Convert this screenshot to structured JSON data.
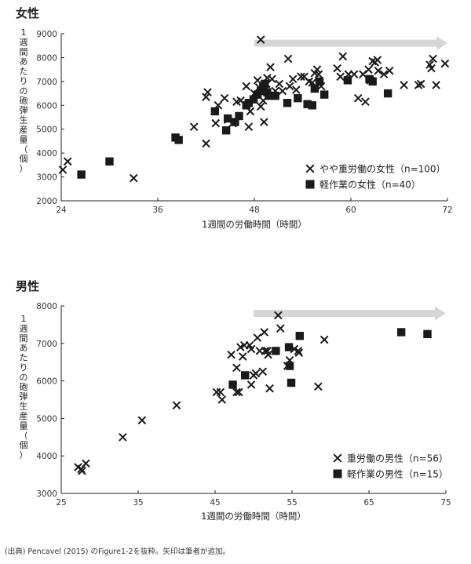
{
  "source_note": "(出典) Pencavel (2015) のFigure1-2を抜粋。矢印は筆者が追加。",
  "chart_data": [
    {
      "type": "scatter",
      "title": "女性",
      "xlabel": "1週間の労働時間（時間）",
      "ylabel": "1週間あたりの砲弾生産量（個）",
      "xlim": [
        24,
        72
      ],
      "ylim": [
        2000,
        9000
      ],
      "xticks": [
        24,
        36,
        48,
        60,
        72
      ],
      "yticks": [
        2000,
        3000,
        4000,
        5000,
        6000,
        7000,
        8000,
        9000
      ],
      "arrow": {
        "from": 48,
        "to": 72,
        "y": 8600
      },
      "series": [
        {
          "name": "やや重労働の女性（n=100）",
          "marker": "x",
          "points": [
            [
              24.2,
              3300
            ],
            [
              24.8,
              3650
            ],
            [
              33,
              2950
            ],
            [
              40.5,
              5100
            ],
            [
              42,
              6350
            ],
            [
              42.2,
              6550
            ],
            [
              42,
              4400
            ],
            [
              43.2,
              5250
            ],
            [
              43.5,
              6000
            ],
            [
              44.3,
              6300
            ],
            [
              44.7,
              5400
            ],
            [
              45.3,
              5250
            ],
            [
              45.8,
              6150
            ],
            [
              46.3,
              6200
            ],
            [
              47,
              6800
            ],
            [
              47.3,
              5100
            ],
            [
              47.5,
              5750
            ],
            [
              48,
              6500
            ],
            [
              48.4,
              7050
            ],
            [
              48.6,
              6750
            ],
            [
              48.8,
              5950
            ],
            [
              48.8,
              8750
            ],
            [
              49.1,
              6200
            ],
            [
              49.2,
              5300
            ],
            [
              49.5,
              6900
            ],
            [
              49.6,
              7150
            ],
            [
              50,
              7600
            ],
            [
              50.2,
              7100
            ],
            [
              50.6,
              6600
            ],
            [
              51.1,
              6900
            ],
            [
              51.5,
              6600
            ],
            [
              52.2,
              7950
            ],
            [
              52.4,
              6800
            ],
            [
              52.8,
              7100
            ],
            [
              53.2,
              6650
            ],
            [
              53.8,
              7200
            ],
            [
              54.2,
              7200
            ],
            [
              54.8,
              7000
            ],
            [
              55.2,
              6950
            ],
            [
              55.5,
              7350
            ],
            [
              55.8,
              7500
            ],
            [
              56,
              7300
            ],
            [
              56.3,
              6800
            ],
            [
              58.3,
              7550
            ],
            [
              58.7,
              7200
            ],
            [
              59,
              8050
            ],
            [
              59.7,
              7300
            ],
            [
              60.4,
              7300
            ],
            [
              60.9,
              6300
            ],
            [
              61.5,
              7300
            ],
            [
              61.8,
              6150
            ],
            [
              62.2,
              7500
            ],
            [
              62.4,
              7050
            ],
            [
              62.7,
              7850
            ],
            [
              63,
              7800
            ],
            [
              63.3,
              7900
            ],
            [
              63.4,
              7450
            ],
            [
              64.1,
              7300
            ],
            [
              64.8,
              7450
            ],
            [
              66.6,
              6850
            ],
            [
              68.4,
              6850
            ],
            [
              68.7,
              6900
            ],
            [
              69.8,
              7700
            ],
            [
              70,
              7550
            ],
            [
              70.2,
              7950
            ],
            [
              70.6,
              6850
            ],
            [
              71.7,
              7750
            ]
          ]
        },
        {
          "name": "軽作業の女性（n=40）",
          "marker": "square",
          "points": [
            [
              26.5,
              3100
            ],
            [
              30,
              3650
            ],
            [
              38.2,
              4650
            ],
            [
              38.6,
              4550
            ],
            [
              43.1,
              5750
            ],
            [
              44.5,
              4950
            ],
            [
              44.7,
              5450
            ],
            [
              45.6,
              5300
            ],
            [
              46.1,
              5550
            ],
            [
              47,
              6000
            ],
            [
              47.3,
              6100
            ],
            [
              47.9,
              6250
            ],
            [
              48.4,
              6450
            ],
            [
              48.8,
              6600
            ],
            [
              49.1,
              6800
            ],
            [
              49.3,
              6900
            ],
            [
              49.6,
              6550
            ],
            [
              49.8,
              6400
            ],
            [
              50.6,
              6400
            ],
            [
              52.1,
              6100
            ],
            [
              53.4,
              6300
            ],
            [
              54.6,
              6050
            ],
            [
              55.2,
              6000
            ],
            [
              55.5,
              6700
            ],
            [
              56.1,
              7000
            ],
            [
              56.7,
              6450
            ],
            [
              59.6,
              7050
            ],
            [
              62.3,
              7100
            ],
            [
              62.7,
              7000
            ],
            [
              64.6,
              6500
            ]
          ]
        }
      ],
      "legend_position": "bottom-right"
    },
    {
      "type": "scatter",
      "title": "男性",
      "xlabel": "1週間の労働時間（時間）",
      "ylabel": "1週間あたりの砲弾生産量（個）",
      "xlim": [
        25,
        75
      ],
      "ylim": [
        3000,
        8000
      ],
      "xticks": [
        25,
        35,
        45,
        55,
        65,
        75
      ],
      "yticks": [
        3000,
        4000,
        5000,
        6000,
        7000,
        8000
      ],
      "arrow": {
        "from": 50,
        "to": 75,
        "y": 7800
      },
      "series": [
        {
          "name": "重労働の男性（n=56）",
          "marker": "x",
          "points": [
            [
              27.2,
              3700
            ],
            [
              27.6,
              3650
            ],
            [
              27.7,
              3600
            ],
            [
              28.2,
              3800
            ],
            [
              33,
              4500
            ],
            [
              35.5,
              4950
            ],
            [
              40,
              5350
            ],
            [
              45.2,
              5700
            ],
            [
              45.7,
              5700
            ],
            [
              45.9,
              5500
            ],
            [
              47.1,
              6700
            ],
            [
              47.8,
              6350
            ],
            [
              47.8,
              5700
            ],
            [
              48.1,
              5700
            ],
            [
              48.3,
              6900
            ],
            [
              48.6,
              6650
            ],
            [
              48.8,
              6950
            ],
            [
              49.5,
              6950
            ],
            [
              49.7,
              5900
            ],
            [
              49.7,
              6850
            ],
            [
              50,
              6150
            ],
            [
              50.3,
              6200
            ],
            [
              50.5,
              7150
            ],
            [
              50.8,
              6800
            ],
            [
              51.2,
              6250
            ],
            [
              51.4,
              7300
            ],
            [
              51.5,
              6800
            ],
            [
              51.8,
              6800
            ],
            [
              51.9,
              6700
            ],
            [
              52.1,
              5800
            ],
            [
              53.2,
              7750
            ],
            [
              53.5,
              7400
            ],
            [
              54.4,
              6400
            ],
            [
              54.7,
              6550
            ],
            [
              55.3,
              6850
            ],
            [
              55.8,
              6800
            ],
            [
              55.9,
              6750
            ],
            [
              58.4,
              5850
            ],
            [
              59.2,
              7100
            ]
          ]
        },
        {
          "name": "軽作業の男性（n=15）",
          "marker": "square",
          "points": [
            [
              47.3,
              5900
            ],
            [
              48.9,
              6150
            ],
            [
              52.9,
              6800
            ],
            [
              54.6,
              6900
            ],
            [
              54.7,
              6400
            ],
            [
              54.9,
              5950
            ],
            [
              56,
              7200
            ],
            [
              69.2,
              7300
            ],
            [
              72.6,
              7250
            ]
          ]
        }
      ],
      "legend_position": "bottom-right"
    }
  ]
}
